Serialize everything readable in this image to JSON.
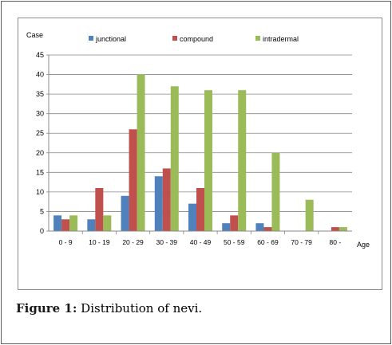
{
  "chart_data": {
    "type": "bar",
    "ylabel": "Case",
    "xlabel": "Age",
    "categories": [
      "0 - 9",
      "10 - 19",
      "20 - 29",
      "30 - 39",
      "40 - 49",
      "50 - 59",
      "60 - 69",
      "70 - 79",
      "80 -"
    ],
    "ylim": [
      0,
      45
    ],
    "yticks": [
      0,
      5,
      10,
      15,
      20,
      25,
      30,
      35,
      40,
      45
    ],
    "grid": true,
    "legend_position": "top",
    "series": [
      {
        "name": "junctional",
        "color": "#4f81bd",
        "values": [
          4,
          3,
          9,
          14,
          7,
          2,
          2,
          0,
          0
        ]
      },
      {
        "name": "compound",
        "color": "#c0504d",
        "values": [
          3,
          11,
          26,
          16,
          11,
          4,
          1,
          0,
          1
        ]
      },
      {
        "name": "intradermal",
        "color": "#9bbb59",
        "values": [
          4,
          4,
          40,
          37,
          36,
          36,
          20,
          8,
          1
        ]
      }
    ]
  },
  "caption": {
    "label": "Figure 1:",
    "text": "Distribution of nevi."
  }
}
